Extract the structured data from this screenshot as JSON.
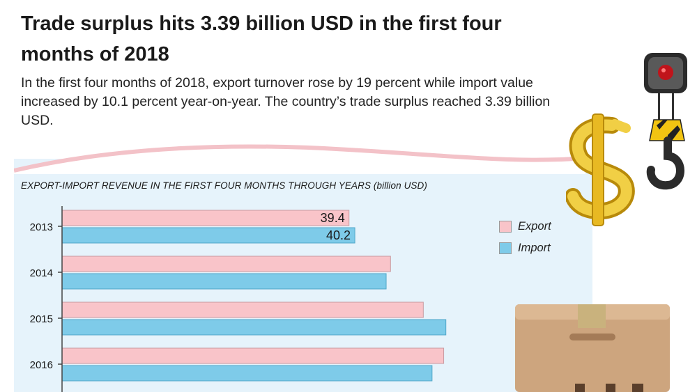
{
  "header": {
    "title": "Trade surplus hits 3.39 billion USD in the first four months of 2018",
    "subtitle": "In the first four months of 2018, export turnover rose by 19 percent while import value increased by 10.1 percent year-on-year. The country’s trade surplus reached 3.39 billion USD."
  },
  "colors": {
    "export": "#f9c4c9",
    "import": "#7ecbe9",
    "panel": "#e6f3fb",
    "axis": "#444444"
  },
  "icons": [
    "crane-hook-icon",
    "dollar-sign-icon",
    "cardboard-box-icon"
  ],
  "chart_data": {
    "type": "bar",
    "orientation": "horizontal",
    "title": "EXPORT-IMPORT REVENUE IN THE FIRST FOUR MONTHS THROUGH YEARS (billion USD)",
    "categories": [
      "2013",
      "2014",
      "2015",
      "2016"
    ],
    "series": [
      {
        "name": "Export",
        "values": [
          39.4,
          45.1,
          49.6,
          52.4
        ],
        "labels": [
          "39.4",
          "",
          "",
          ""
        ]
      },
      {
        "name": "Import",
        "values": [
          40.2,
          44.5,
          52.7,
          50.8
        ],
        "labels": [
          "40.2",
          "",
          "",
          ""
        ]
      }
    ],
    "xlim": [
      0,
      60
    ],
    "legend_position": "right",
    "grid": false
  }
}
